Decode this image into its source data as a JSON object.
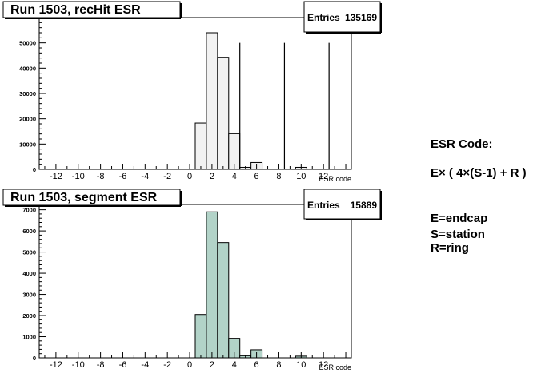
{
  "chart_data": [
    {
      "type": "bar",
      "title": "Run 1503, recHit ESR",
      "stats": {
        "label": "Entries",
        "value": "135169"
      },
      "xlabel": "ESR code",
      "xlim": [
        -13.5,
        14.5
      ],
      "xticks": [
        "-12",
        "-10",
        "-8",
        "-6",
        "-4",
        "-2",
        "0",
        "2",
        "4",
        "6",
        "8",
        "10",
        "12"
      ],
      "ylim": [
        0,
        60000
      ],
      "yticks": [
        "0",
        "10000",
        "20000",
        "30000",
        "40000",
        "50000"
      ],
      "fill": "#f2f2f2",
      "bins": [
        {
          "lo": 0.5,
          "hi": 1.5,
          "value": 18300
        },
        {
          "lo": 1.5,
          "hi": 2.5,
          "value": 54000
        },
        {
          "lo": 2.5,
          "hi": 3.5,
          "value": 44300
        },
        {
          "lo": 3.5,
          "hi": 4.5,
          "value": 14100
        },
        {
          "lo": 4.5,
          "hi": 5.5,
          "value": 800
        },
        {
          "lo": 5.5,
          "hi": 6.5,
          "value": 2700
        },
        {
          "lo": 9.5,
          "hi": 10.5,
          "value": 800
        }
      ],
      "spikes": [
        {
          "x": 4.5,
          "value": 50000
        },
        {
          "x": 8.5,
          "value": 50000
        },
        {
          "x": 12.5,
          "value": 50000
        }
      ]
    },
    {
      "type": "bar",
      "title": "Run 1503, segment ESR",
      "stats": {
        "label": "Entries",
        "value": "15889"
      },
      "xlabel": "ESR code",
      "xlim": [
        -13.5,
        14.5
      ],
      "xticks": [
        "-12",
        "-10",
        "-8",
        "-6",
        "-4",
        "-2",
        "0",
        "2",
        "4",
        "6",
        "8",
        "10",
        "12"
      ],
      "ylim": [
        0,
        7250
      ],
      "yticks": [
        "0",
        "1000",
        "2000",
        "3000",
        "4000",
        "5000",
        "6000",
        "7000"
      ],
      "fill": "#b2d3c8",
      "bins": [
        {
          "lo": 0.5,
          "hi": 1.5,
          "value": 2050
        },
        {
          "lo": 1.5,
          "hi": 2.5,
          "value": 6900
        },
        {
          "lo": 2.5,
          "hi": 3.5,
          "value": 5450
        },
        {
          "lo": 3.5,
          "hi": 4.5,
          "value": 920
        },
        {
          "lo": 4.5,
          "hi": 5.5,
          "value": 100
        },
        {
          "lo": 5.5,
          "hi": 6.5,
          "value": 380
        },
        {
          "lo": 9.5,
          "hi": 10.5,
          "value": 80
        }
      ],
      "spikes": []
    }
  ],
  "legend": {
    "heading": "ESR Code:",
    "formula": "E× ( 4×(S-1) + R )",
    "definitions": [
      "E=endcap",
      "S=station",
      "R=ring"
    ]
  }
}
